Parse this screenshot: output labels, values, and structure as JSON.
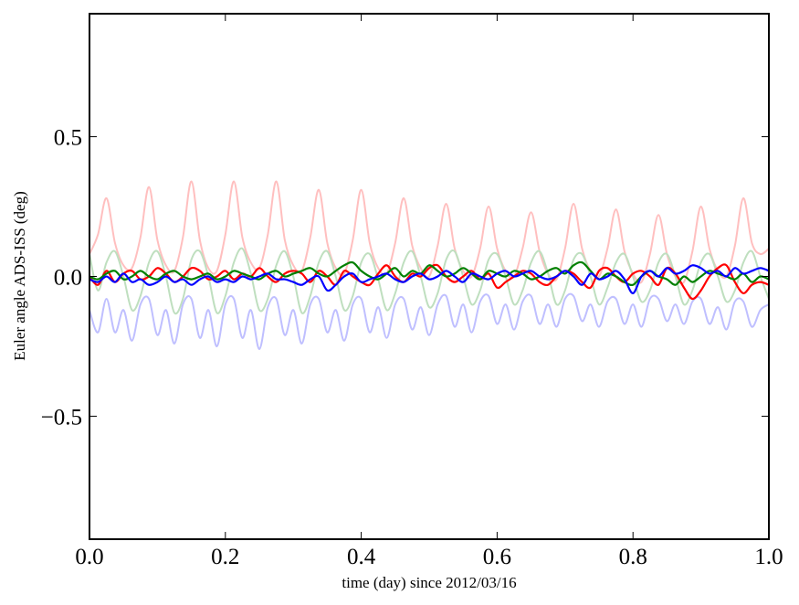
{
  "chart_data": {
    "type": "line",
    "title": "",
    "xlabel": "time (day) since 2012/03/16",
    "ylabel": "Euler angle ADS-ISS (deg)",
    "xlim": [
      0.0,
      1.0
    ],
    "ylim": [
      -0.94,
      0.94
    ],
    "xticks": [
      {
        "v": 0.0,
        "label": "0.0"
      },
      {
        "v": 0.2,
        "label": "0.2"
      },
      {
        "v": 0.4,
        "label": "0.4"
      },
      {
        "v": 0.6,
        "label": "0.6"
      },
      {
        "v": 0.8,
        "label": "0.8"
      },
      {
        "v": 1.0,
        "label": "1.0"
      }
    ],
    "yticks": [
      {
        "v": 0.5,
        "label": "0.5"
      },
      {
        "v": 0.0,
        "label": "0.0"
      },
      {
        "v": -0.5,
        "label": "−0.5"
      }
    ],
    "grid": false,
    "x_start": 0.0,
    "x_step": 0.0125,
    "series": [
      {
        "name": "red-faint",
        "color": "#ffbfbf",
        "values": [
          0.08,
          0.15,
          0.28,
          0.12,
          0.04,
          0.03,
          0.14,
          0.32,
          0.13,
          0.04,
          0.02,
          0.14,
          0.34,
          0.13,
          0.03,
          0.02,
          0.15,
          0.34,
          0.14,
          0.05,
          0.03,
          0.15,
          0.34,
          0.13,
          0.04,
          0.02,
          0.14,
          0.31,
          0.12,
          0.03,
          0.01,
          0.13,
          0.31,
          0.12,
          0.03,
          0.01,
          0.12,
          0.28,
          0.11,
          0.03,
          0.0,
          0.11,
          0.26,
          0.1,
          0.02,
          0.0,
          0.1,
          0.25,
          0.1,
          0.02,
          0.0,
          0.1,
          0.23,
          0.09,
          0.01,
          -0.01,
          0.1,
          0.26,
          0.1,
          0.02,
          0.0,
          0.1,
          0.24,
          0.09,
          0.01,
          -0.02,
          0.08,
          0.22,
          0.08,
          0.0,
          -0.02,
          0.09,
          0.25,
          0.1,
          0.02,
          0.0,
          0.11,
          0.28,
          0.12,
          0.08,
          0.1
        ]
      },
      {
        "name": "green-faint",
        "color": "#bfdfbf",
        "values": [
          0.08,
          -0.05,
          0.05,
          0.09,
          0.0,
          -0.12,
          -0.07,
          0.05,
          0.09,
          0.0,
          -0.13,
          -0.08,
          0.06,
          0.09,
          0.0,
          -0.13,
          -0.07,
          0.05,
          0.1,
          0.01,
          -0.12,
          -0.08,
          0.04,
          0.09,
          0.0,
          -0.13,
          -0.07,
          0.05,
          0.09,
          0.0,
          -0.12,
          -0.07,
          0.05,
          0.08,
          -0.01,
          -0.12,
          -0.06,
          0.05,
          0.09,
          0.0,
          -0.11,
          -0.06,
          0.06,
          0.09,
          0.0,
          -0.1,
          -0.05,
          0.06,
          0.08,
          0.0,
          -0.1,
          -0.05,
          0.05,
          0.09,
          0.01,
          -0.1,
          -0.05,
          0.06,
          0.08,
          0.0,
          -0.1,
          -0.04,
          0.05,
          0.08,
          0.0,
          -0.09,
          -0.05,
          0.05,
          0.08,
          0.0,
          -0.1,
          -0.05,
          0.05,
          0.08,
          0.0,
          -0.09,
          -0.05,
          0.05,
          0.09,
          0.0,
          -0.08
        ]
      },
      {
        "name": "blue-faint",
        "color": "#bfbfff",
        "values": [
          -0.12,
          -0.2,
          -0.08,
          -0.2,
          -0.12,
          -0.23,
          -0.1,
          -0.08,
          -0.21,
          -0.12,
          -0.24,
          -0.1,
          -0.08,
          -0.22,
          -0.12,
          -0.25,
          -0.1,
          -0.08,
          -0.22,
          -0.12,
          -0.26,
          -0.11,
          -0.08,
          -0.21,
          -0.12,
          -0.24,
          -0.1,
          -0.08,
          -0.2,
          -0.12,
          -0.23,
          -0.1,
          -0.08,
          -0.2,
          -0.11,
          -0.22,
          -0.1,
          -0.08,
          -0.19,
          -0.11,
          -0.21,
          -0.1,
          -0.07,
          -0.18,
          -0.1,
          -0.2,
          -0.09,
          -0.07,
          -0.17,
          -0.1,
          -0.19,
          -0.09,
          -0.07,
          -0.17,
          -0.1,
          -0.18,
          -0.08,
          -0.07,
          -0.16,
          -0.1,
          -0.18,
          -0.09,
          -0.08,
          -0.17,
          -0.1,
          -0.18,
          -0.08,
          -0.08,
          -0.16,
          -0.1,
          -0.17,
          -0.09,
          -0.08,
          -0.17,
          -0.11,
          -0.19,
          -0.09,
          -0.09,
          -0.18,
          -0.12,
          -0.1
        ]
      },
      {
        "name": "red",
        "color": "#ff0000",
        "values": [
          0.0,
          -0.03,
          0.02,
          -0.02,
          0.01,
          0.02,
          -0.01,
          0.0,
          0.03,
          0.01,
          -0.02,
          0.0,
          0.03,
          0.02,
          -0.01,
          0.0,
          0.02,
          -0.01,
          0.01,
          0.0,
          0.03,
          0.0,
          -0.02,
          0.01,
          0.02,
          0.01,
          -0.02,
          0.02,
          0.0,
          -0.03,
          0.02,
          0.0,
          -0.02,
          -0.03,
          0.01,
          0.04,
          0.0,
          -0.02,
          0.01,
          0.0,
          0.03,
          0.04,
          0.0,
          -0.02,
          0.0,
          0.02,
          -0.01,
          0.01,
          -0.04,
          -0.02,
          0.0,
          0.02,
          0.01,
          -0.02,
          -0.03,
          0.0,
          0.02,
          0.01,
          -0.02,
          -0.04,
          0.02,
          0.03,
          0.0,
          -0.02,
          0.01,
          0.02,
          0.0,
          -0.03,
          0.03,
          0.01,
          -0.04,
          -0.08,
          -0.05,
          0.0,
          0.03,
          0.04,
          -0.02,
          -0.06,
          -0.03,
          -0.02,
          -0.03
        ]
      },
      {
        "name": "green",
        "color": "#008000",
        "values": [
          0.0,
          -0.01,
          0.01,
          0.02,
          -0.01,
          0.0,
          0.02,
          0.0,
          -0.01,
          0.01,
          0.02,
          0.0,
          -0.01,
          0.0,
          0.01,
          -0.01,
          0.0,
          0.02,
          0.01,
          0.0,
          -0.01,
          0.01,
          0.02,
          0.0,
          0.01,
          0.02,
          0.03,
          0.01,
          0.0,
          0.02,
          0.04,
          0.05,
          0.02,
          0.0,
          -0.01,
          0.01,
          0.03,
          0.0,
          0.02,
          0.01,
          0.04,
          0.02,
          0.0,
          0.01,
          0.03,
          0.01,
          -0.01,
          0.02,
          0.01,
          0.0,
          0.02,
          0.01,
          -0.01,
          0.0,
          0.02,
          0.03,
          0.01,
          0.04,
          0.05,
          0.02,
          -0.01,
          0.01,
          0.0,
          -0.02,
          -0.03,
          0.0,
          0.02,
          0.0,
          -0.01,
          -0.03,
          0.0,
          -0.02,
          0.0,
          0.02,
          0.01,
          0.0,
          -0.01,
          0.01,
          -0.02,
          0.0,
          -0.01
        ]
      },
      {
        "name": "blue",
        "color": "#0000ff",
        "values": [
          -0.01,
          -0.02,
          0.0,
          -0.02,
          0.01,
          -0.02,
          -0.01,
          -0.03,
          -0.02,
          0.0,
          -0.02,
          -0.01,
          -0.03,
          -0.01,
          0.0,
          -0.02,
          -0.01,
          -0.02,
          0.0,
          -0.01,
          0.0,
          0.01,
          -0.01,
          -0.01,
          -0.02,
          -0.03,
          -0.01,
          0.0,
          -0.05,
          -0.03,
          0.0,
          0.01,
          -0.02,
          -0.01,
          0.0,
          0.01,
          -0.01,
          -0.02,
          0.0,
          0.01,
          -0.01,
          0.0,
          0.02,
          0.0,
          -0.02,
          0.01,
          0.0,
          -0.01,
          0.01,
          0.02,
          0.0,
          0.01,
          0.02,
          0.0,
          -0.01,
          0.0,
          0.02,
          0.0,
          -0.03,
          0.01,
          -0.01,
          0.0,
          0.02,
          -0.01,
          -0.06,
          0.0,
          0.02,
          0.0,
          0.03,
          0.01,
          0.02,
          0.04,
          0.03,
          0.01,
          0.02,
          0.0,
          0.03,
          0.01,
          0.02,
          0.03,
          0.02
        ]
      }
    ]
  }
}
